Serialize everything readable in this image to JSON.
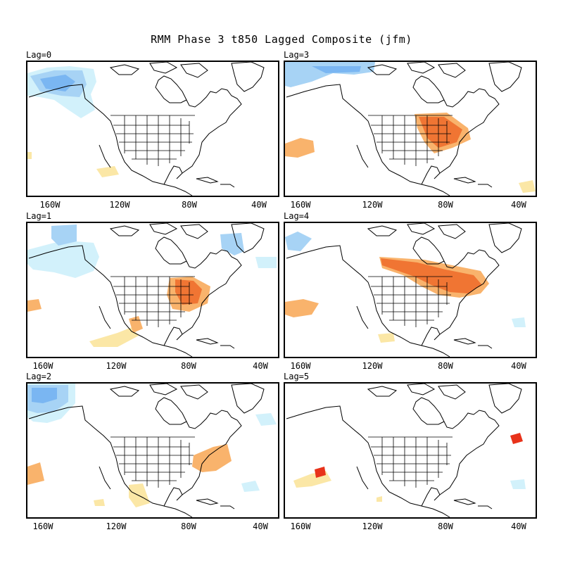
{
  "title": "RMM Phase 3 t850 Lagged Composite (jfm)",
  "palette": {
    "cold_strong": "#7ab6f2",
    "cold_medium": "#a7d3f5",
    "cold_weak": "#d2f1fb",
    "warm_weak": "#fbe7a6",
    "warm_medium": "#f9b36c",
    "warm_strong": "#f07533",
    "warm_extreme": "#e8321a"
  },
  "panels": [
    {
      "id": "lag0",
      "label": "Lag=0",
      "ticks": [
        "160W",
        "120W",
        "80W",
        "40W"
      ]
    },
    {
      "id": "lag3",
      "label": "Lag=3",
      "ticks": [
        "160W",
        "120W",
        "80W",
        "40W"
      ]
    },
    {
      "id": "lag1",
      "label": "Lag=1",
      "ticks": [
        "160W",
        "120W",
        "80W",
        "40W"
      ]
    },
    {
      "id": "lag4",
      "label": "Lag=4",
      "ticks": [
        "160W",
        "120W",
        "80W",
        "40W"
      ]
    },
    {
      "id": "lag2",
      "label": "Lag=2",
      "ticks": [
        "160W",
        "120W",
        "80W",
        "40W"
      ]
    },
    {
      "id": "lag5",
      "label": "Lag=5",
      "ticks": [
        "160W",
        "120W",
        "80W",
        "40W"
      ]
    }
  ]
}
